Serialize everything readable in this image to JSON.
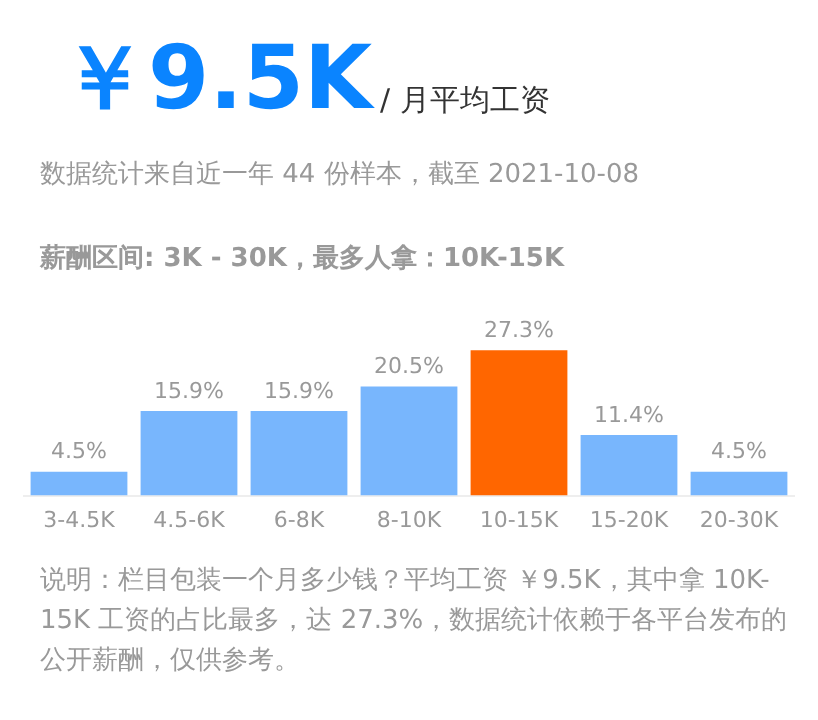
{
  "chart_data": {
    "type": "bar",
    "title": "￥9.5K",
    "subtitle": "/ 月平均工资",
    "annotations": [
      "数据统计来自近一年 44 份样本，截至 2021-10-08",
      "薪酬区间: 3K - 30K，最多人拿：10K-15K",
      "说明：栏目包装一个月多少钱？平均工资 ￥9.5K，其中拿 10K-15K 工资的占比最多，达 27.3%，数据统计依赖于各平台发布的公开薪酬，仅供参考。"
    ],
    "categories": [
      "3-4.5K",
      "4.5-6K",
      "6-8K",
      "8-10K",
      "10-15K",
      "15-20K",
      "20-30K"
    ],
    "values": [
      4.5,
      15.9,
      15.9,
      20.5,
      27.3,
      11.4,
      4.5
    ],
    "colors": [
      "#78b6fd",
      "#78b6fd",
      "#78b6fd",
      "#78b6fd",
      "#ff6600",
      "#78b6fd",
      "#78b6fd"
    ],
    "value_labels": [
      "4.5%",
      "15.9%",
      "15.9%",
      "20.5%",
      "27.3%",
      "11.4%",
      "4.5%"
    ],
    "grid": false,
    "legend": false
  }
}
